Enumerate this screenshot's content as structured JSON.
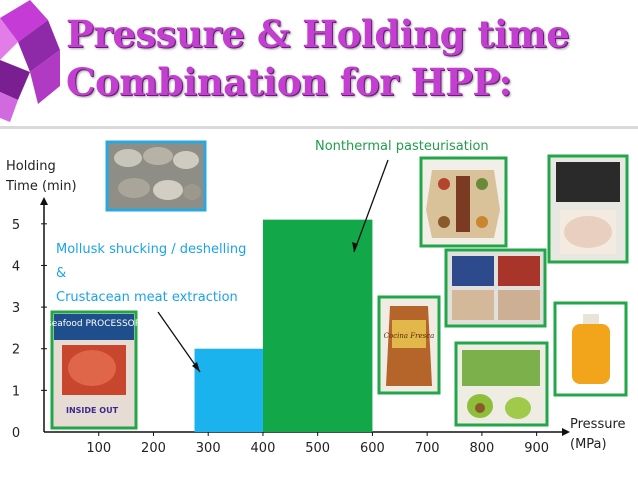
{
  "slide": {
    "title_line1": "Pressure & Holding time",
    "title_line2": "Combination for HPP:"
  },
  "colors": {
    "title": "#c23fd0",
    "bar_blue": "#1ab3ee",
    "bar_green": "#12a84a",
    "frame_green": "#22a64a",
    "frame_blue": "#29a8e0",
    "annotation_blue": "#1aa3e8",
    "annotation_green": "#1f9d4a"
  },
  "images": {
    "magazine_masthead": "seafood PROCESSOR",
    "magazine_cover_line": "INSIDE OUT",
    "product_bag_label": "Cocina Fresca"
  },
  "chart_data": {
    "type": "bar",
    "ylabel_lines": [
      "Holding",
      "Time (min)"
    ],
    "xlabel_lines": [
      "Pressure",
      "(MPa)"
    ],
    "x_ticks": [
      100,
      200,
      300,
      400,
      500,
      600,
      700,
      800,
      900
    ],
    "y_ticks": [
      0,
      1,
      2,
      3,
      4,
      5
    ],
    "xlim": [
      0,
      950
    ],
    "ylim": [
      0,
      5.5
    ],
    "bars": [
      {
        "x_start": 275,
        "x_end": 400,
        "y": 2,
        "color": "blue"
      },
      {
        "x_start": 400,
        "x_end": 600,
        "y": 5.1,
        "color": "green"
      }
    ],
    "annotations": [
      {
        "lines": [
          "Mollusk shucking / deshelling",
          "&",
          "Crustacean meat extraction"
        ],
        "color": "blue"
      },
      {
        "lines": [
          "Nonthermal pasteurisation"
        ],
        "color": "green"
      }
    ]
  }
}
